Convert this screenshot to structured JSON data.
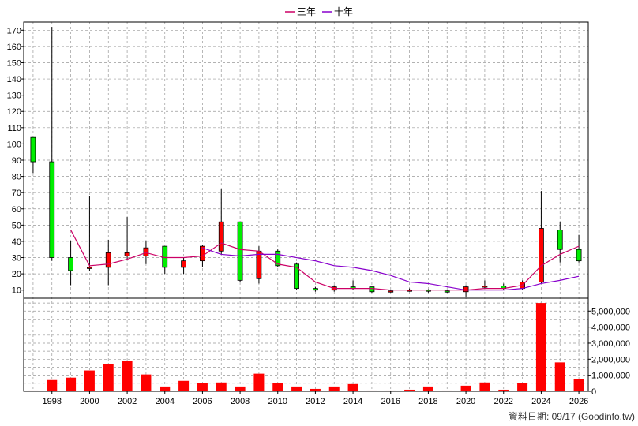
{
  "legend": {
    "series_3y": "三年",
    "series_10y": "十年"
  },
  "source_note": "資料日期: 09/17  (Goodinfo.tw)",
  "colors": {
    "up_candle": "#ff0000",
    "down_candle": "#00ee00",
    "volume_bar": "#ff0000",
    "ma3": "#cc0066",
    "ma10": "#8800cc",
    "grid": "#999999"
  },
  "chart_data": [
    {
      "type": "candlestick",
      "title": "",
      "xlabel": "",
      "ylabel": "",
      "ylim": [
        5,
        175
      ],
      "yticks": [
        10,
        20,
        30,
        40,
        50,
        60,
        70,
        80,
        90,
        100,
        110,
        120,
        130,
        140,
        150,
        160,
        170
      ],
      "xlim": [
        1996.5,
        2026.5
      ],
      "xticks": [
        "1998",
        "2000",
        "2002",
        "2004",
        "2006",
        "2008",
        "2010",
        "2012",
        "2014",
        "2016",
        "2018",
        "2020",
        "2022",
        "2024",
        "2026"
      ],
      "grid": true,
      "candles": [
        {
          "year": 1997,
          "open": 104,
          "close": 89,
          "high": 104,
          "low": 82
        },
        {
          "year": 1998,
          "open": 89,
          "close": 30,
          "high": 172,
          "low": 28
        },
        {
          "year": 1999,
          "open": 30,
          "close": 22,
          "high": 40,
          "low": 13
        },
        {
          "year": 2000,
          "open": 24,
          "close": 24,
          "high": 68,
          "low": 22
        },
        {
          "year": 2001,
          "open": 24,
          "close": 33,
          "high": 41,
          "low": 13
        },
        {
          "year": 2002,
          "open": 31,
          "close": 33,
          "high": 55,
          "low": 29
        },
        {
          "year": 2003,
          "open": 31,
          "close": 36,
          "high": 40,
          "low": 26
        },
        {
          "year": 2004,
          "open": 37,
          "close": 24,
          "high": 37,
          "low": 20
        },
        {
          "year": 2005,
          "open": 24,
          "close": 28,
          "high": 30,
          "low": 20
        },
        {
          "year": 2006,
          "open": 28,
          "close": 37,
          "high": 38,
          "low": 24
        },
        {
          "year": 2007,
          "open": 34,
          "close": 52,
          "high": 72,
          "low": 32
        },
        {
          "year": 2008,
          "open": 52,
          "close": 16,
          "high": 52,
          "low": 15
        },
        {
          "year": 2009,
          "open": 17,
          "close": 34,
          "high": 37,
          "low": 14
        },
        {
          "year": 2010,
          "open": 34,
          "close": 25,
          "high": 35,
          "low": 24
        },
        {
          "year": 2011,
          "open": 26,
          "close": 11,
          "high": 27,
          "low": 10
        },
        {
          "year": 2012,
          "open": 11,
          "close": 10,
          "high": 12,
          "low": 9
        },
        {
          "year": 2013,
          "open": 10,
          "close": 12,
          "high": 13,
          "low": 9
        },
        {
          "year": 2014,
          "open": 12,
          "close": 11,
          "high": 16,
          "low": 10
        },
        {
          "year": 2015,
          "open": 12,
          "close": 9,
          "high": 12,
          "low": 8
        },
        {
          "year": 2016,
          "open": 9,
          "close": 9.5,
          "high": 10,
          "low": 8.5
        },
        {
          "year": 2017,
          "open": 9.5,
          "close": 10,
          "high": 11,
          "low": 9
        },
        {
          "year": 2018,
          "open": 10,
          "close": 9.5,
          "high": 10.5,
          "low": 8.5
        },
        {
          "year": 2019,
          "open": 9.5,
          "close": 9,
          "high": 10,
          "low": 8
        },
        {
          "year": 2020,
          "open": 9,
          "close": 12,
          "high": 13,
          "low": 6
        },
        {
          "year": 2021,
          "open": 12,
          "close": 12.5,
          "high": 16,
          "low": 11
        },
        {
          "year": 2022,
          "open": 12.5,
          "close": 11,
          "high": 14,
          "low": 10
        },
        {
          "year": 2023,
          "open": 11,
          "close": 15,
          "high": 16,
          "low": 10
        },
        {
          "year": 2024,
          "open": 15,
          "close": 48,
          "high": 71,
          "low": 14
        },
        {
          "year": 2025,
          "open": 47,
          "close": 35,
          "high": 52,
          "low": 27
        },
        {
          "year": 2026,
          "open": 35,
          "close": 28,
          "high": 44,
          "low": 27
        }
      ],
      "series": [
        {
          "name": "三年",
          "x": [
            1999,
            2000,
            2001,
            2002,
            2003,
            2004,
            2005,
            2006,
            2007,
            2008,
            2009,
            2010,
            2011,
            2012,
            2013,
            2014,
            2015,
            2016,
            2017,
            2018,
            2019,
            2020,
            2021,
            2022,
            2023,
            2024,
            2025,
            2026
          ],
          "values": [
            47,
            25,
            26,
            29,
            33,
            30,
            30,
            31,
            39,
            35,
            34,
            26,
            24,
            15,
            11,
            11,
            11,
            10,
            10,
            10,
            10,
            10,
            11,
            11,
            13,
            25,
            32,
            37
          ]
        },
        {
          "name": "十年",
          "x": [
            2006,
            2007,
            2008,
            2009,
            2010,
            2011,
            2012,
            2013,
            2014,
            2015,
            2016,
            2017,
            2018,
            2019,
            2020,
            2021,
            2022,
            2023,
            2024,
            2025,
            2026
          ],
          "values": [
            36,
            32,
            31,
            32,
            32,
            30,
            28,
            25,
            24,
            22,
            19,
            15,
            14,
            12,
            10,
            10,
            10,
            11,
            14,
            16,
            18.5
          ]
        }
      ]
    },
    {
      "type": "bar",
      "title": "",
      "xlabel": "",
      "ylabel": "",
      "ylim": [
        0,
        5800000
      ],
      "yticks": [
        0,
        1000000,
        2000000,
        3000000,
        4000000,
        5000000
      ],
      "ytick_labels": [
        "0",
        "1,000,000",
        "2,000,000",
        "3,000,000",
        "4,000,000",
        "5,000,000"
      ],
      "grid": true,
      "categories": [
        1997,
        1998,
        1999,
        2000,
        2001,
        2002,
        2003,
        2004,
        2005,
        2006,
        2007,
        2008,
        2009,
        2010,
        2011,
        2012,
        2013,
        2014,
        2015,
        2016,
        2017,
        2018,
        2019,
        2020,
        2021,
        2022,
        2023,
        2024,
        2025,
        2026
      ],
      "values": [
        50000,
        700000,
        850000,
        1300000,
        1700000,
        1900000,
        1050000,
        300000,
        650000,
        500000,
        550000,
        300000,
        1100000,
        500000,
        300000,
        150000,
        300000,
        450000,
        50000,
        50000,
        100000,
        300000,
        50000,
        350000,
        550000,
        100000,
        500000,
        5500000,
        1800000,
        750000
      ]
    }
  ]
}
